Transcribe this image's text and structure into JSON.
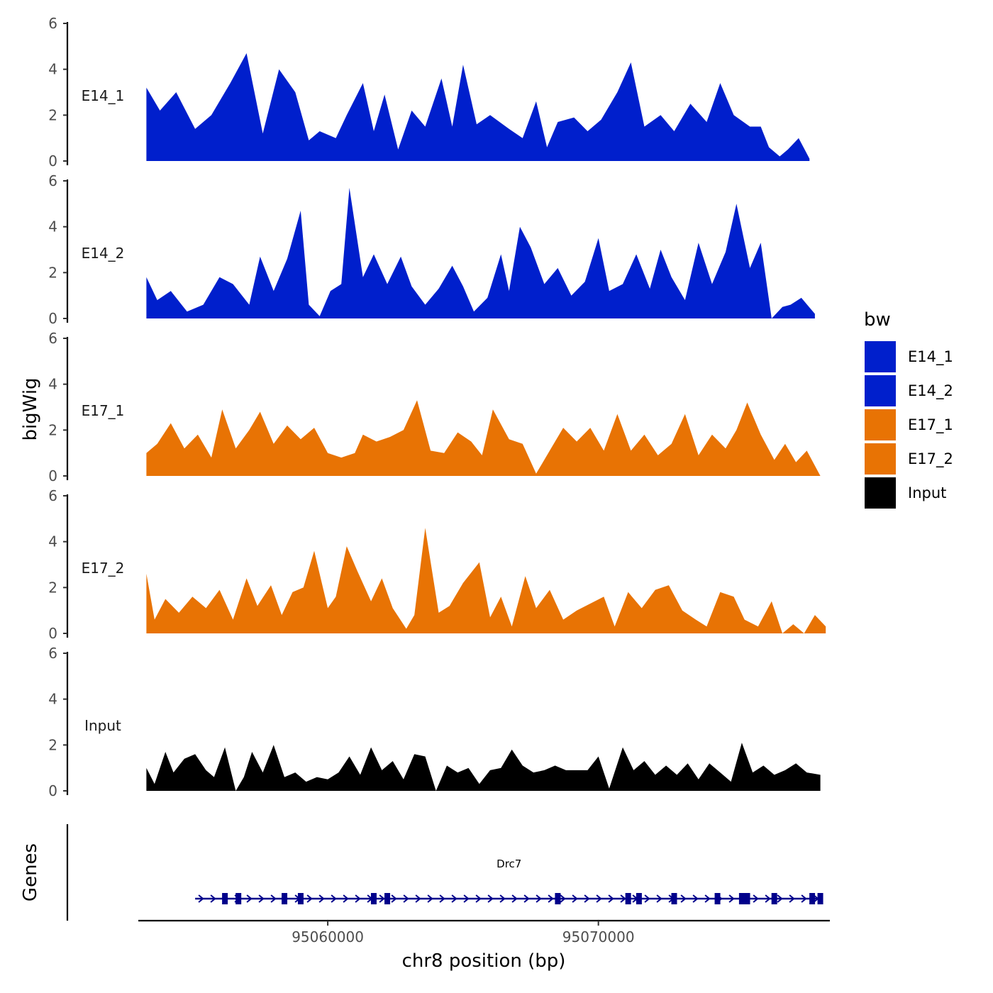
{
  "chart_data": {
    "type": "area",
    "y_axis_title": "bigWig",
    "x_axis_title": "chr8 position (bp)",
    "genes_axis_title": "Genes",
    "xlim": [
      95053000,
      95078500
    ],
    "ylim": [
      0,
      6
    ],
    "y_ticks": [
      "0",
      "2",
      "4",
      "6"
    ],
    "x_ticks": [
      {
        "value": 95060000,
        "label": "95060000"
      },
      {
        "value": 95070000,
        "label": "95070000"
      }
    ],
    "legend": {
      "title": "bw",
      "items": [
        {
          "name": "E14_1",
          "color": "#001fcc"
        },
        {
          "name": "E14_2",
          "color": "#001fcc"
        },
        {
          "name": "E17_1",
          "color": "#e87304"
        },
        {
          "name": "E17_2",
          "color": "#e87304"
        },
        {
          "name": "Input",
          "color": "#000000"
        }
      ]
    },
    "tracks": [
      {
        "name": "E14_1",
        "color": "#001fcc",
        "x": [
          95053300,
          95053800,
          95054400,
          95055100,
          95055700,
          95056400,
          95057000,
          95057600,
          95058200,
          95058800,
          95059300,
          95059700,
          95060300,
          95060700,
          95061300,
          95061700,
          95062100,
          95062600,
          95063100,
          95063600,
          95064200,
          95064600,
          95065000,
          95065500,
          95066000,
          95066700,
          95067200,
          95067700,
          95068100,
          95068500,
          95069100,
          95069600,
          95070100,
          95070700,
          95071200,
          95071700,
          95072300,
          95072800,
          95073400,
          95074000,
          95074500,
          95075000,
          95075600,
          95076000,
          95076300,
          95076700,
          95077000,
          95077400,
          95077800
        ],
        "y": [
          3.2,
          2.2,
          3.0,
          1.4,
          2.0,
          3.4,
          4.7,
          1.2,
          4.0,
          3.0,
          0.9,
          1.3,
          1.0,
          2.0,
          3.4,
          1.3,
          2.9,
          0.5,
          2.2,
          1.5,
          3.6,
          1.5,
          4.2,
          1.6,
          2.0,
          1.4,
          1.0,
          2.6,
          0.6,
          1.7,
          1.9,
          1.3,
          1.8,
          3.0,
          4.3,
          1.5,
          2.0,
          1.3,
          2.5,
          1.7,
          3.4,
          2.0,
          1.5,
          1.5,
          0.6,
          0.2,
          0.5,
          1.0,
          0.1
        ]
      },
      {
        "name": "E14_2",
        "color": "#001fcc",
        "x": [
          95053300,
          95053700,
          95054200,
          95054800,
          95055400,
          95056000,
          95056500,
          95057100,
          95057500,
          95058000,
          95058500,
          95059000,
          95059300,
          95059700,
          95060100,
          95060500,
          95060800,
          95061300,
          95061700,
          95062200,
          95062700,
          95063100,
          95063600,
          95064100,
          95064600,
          95065000,
          95065400,
          95065900,
          95066400,
          95066700,
          95067100,
          95067500,
          95068000,
          95068500,
          95069000,
          95069500,
          95070000,
          95070400,
          95070900,
          95071400,
          95071900,
          95072300,
          95072700,
          95073200,
          95073700,
          95074200,
          95074700,
          95075100,
          95075600,
          95076000,
          95076400,
          95076800,
          95077100,
          95077500,
          95078000
        ],
        "y": [
          1.8,
          0.8,
          1.2,
          0.3,
          0.6,
          1.8,
          1.5,
          0.6,
          2.7,
          1.2,
          2.6,
          4.7,
          0.6,
          0.1,
          1.2,
          1.5,
          5.7,
          1.8,
          2.8,
          1.5,
          2.7,
          1.4,
          0.6,
          1.3,
          2.3,
          1.4,
          0.3,
          0.9,
          2.8,
          1.2,
          4.0,
          3.1,
          1.5,
          2.2,
          1.0,
          1.6,
          3.5,
          1.2,
          1.5,
          2.8,
          1.3,
          3.0,
          1.8,
          0.8,
          3.3,
          1.5,
          2.9,
          5.0,
          2.2,
          3.3,
          0.0,
          0.5,
          0.6,
          0.9,
          0.2
        ]
      },
      {
        "name": "E17_1",
        "color": "#e87304",
        "x": [
          95053300,
          95053700,
          95054200,
          95054700,
          95055200,
          95055700,
          95056100,
          95056600,
          95057100,
          95057500,
          95058000,
          95058500,
          95059000,
          95059500,
          95060000,
          95060500,
          95061000,
          95061300,
          95061800,
          95062300,
          95062800,
          95063300,
          95063800,
          95064300,
          95064800,
          95065300,
          95065700,
          95066100,
          95066700,
          95067200,
          95067700,
          95068200,
          95068700,
          95069200,
          95069700,
          95070200,
          95070700,
          95071200,
          95071700,
          95072200,
          95072700,
          95073200,
          95073700,
          95074200,
          95074700,
          95075100,
          95075500,
          95076000,
          95076500,
          95076900,
          95077300,
          95077700,
          95078200
        ],
        "y": [
          1.0,
          1.4,
          2.3,
          1.2,
          1.8,
          0.8,
          2.9,
          1.2,
          2.0,
          2.8,
          1.4,
          2.2,
          1.6,
          2.1,
          1.0,
          0.8,
          1.0,
          1.8,
          1.5,
          1.7,
          2.0,
          3.3,
          1.1,
          1.0,
          1.9,
          1.5,
          0.9,
          2.9,
          1.6,
          1.4,
          0.1,
          1.1,
          2.1,
          1.5,
          2.1,
          1.1,
          2.7,
          1.1,
          1.8,
          0.9,
          1.4,
          2.7,
          0.9,
          1.8,
          1.2,
          2.0,
          3.2,
          1.8,
          0.7,
          1.4,
          0.6,
          1.1,
          0.0
        ]
      },
      {
        "name": "E17_2",
        "color": "#e87304",
        "x": [
          95053300,
          95053600,
          95054000,
          95054500,
          95055000,
          95055500,
          95056000,
          95056500,
          95057000,
          95057400,
          95057900,
          95058300,
          95058700,
          95059100,
          95059500,
          95060000,
          95060300,
          95060700,
          95061100,
          95061600,
          95062000,
          95062400,
          95062900,
          95063200,
          95063600,
          95064100,
          95064500,
          95065000,
          95065600,
          95066000,
          95066400,
          95066800,
          95067300,
          95067700,
          95068200,
          95068700,
          95069200,
          95069700,
          95070200,
          95070600,
          95071100,
          95071600,
          95072100,
          95072600,
          95073100,
          95073600,
          95074000,
          95074500,
          95075000,
          95075400,
          95075900,
          95076400,
          95076800,
          95077200,
          95077600,
          95078000,
          95078400
        ],
        "y": [
          2.6,
          0.6,
          1.5,
          0.9,
          1.6,
          1.1,
          1.9,
          0.6,
          2.4,
          1.2,
          2.1,
          0.8,
          1.8,
          2.0,
          3.6,
          1.1,
          1.6,
          3.8,
          2.7,
          1.4,
          2.4,
          1.1,
          0.2,
          0.8,
          4.6,
          0.9,
          1.2,
          2.2,
          3.1,
          0.7,
          1.6,
          0.3,
          2.5,
          1.1,
          1.9,
          0.6,
          1.0,
          1.3,
          1.6,
          0.3,
          1.8,
          1.1,
          1.9,
          2.1,
          1.0,
          0.6,
          0.3,
          1.8,
          1.6,
          0.6,
          0.3,
          1.4,
          0.0,
          0.4,
          0.0,
          0.8,
          0.3
        ]
      },
      {
        "name": "Input",
        "color": "#000000",
        "x": [
          95053300,
          95053600,
          95054000,
          95054300,
          95054700,
          95055100,
          95055500,
          95055800,
          95056200,
          95056600,
          95056900,
          95057200,
          95057600,
          95058000,
          95058400,
          95058800,
          95059200,
          95059600,
          95060000,
          95060400,
          95060800,
          95061200,
          95061600,
          95062000,
          95062400,
          95062800,
          95063200,
          95063600,
          95064000,
          95064400,
          95064800,
          95065200,
          95065600,
          95066000,
          95066400,
          95066800,
          95067200,
          95067600,
          95068000,
          95068400,
          95068800,
          95069200,
          95069600,
          95070000,
          95070400,
          95070900,
          95071300,
          95071700,
          95072100,
          95072500,
          95072900,
          95073300,
          95073700,
          95074100,
          95074500,
          95074900,
          95075300,
          95075700,
          95076100,
          95076500,
          95076900,
          95077300,
          95077700,
          95078200
        ],
        "y": [
          1.0,
          0.3,
          1.7,
          0.8,
          1.4,
          1.6,
          0.9,
          0.6,
          1.9,
          0.0,
          0.6,
          1.7,
          0.8,
          2.0,
          0.6,
          0.8,
          0.4,
          0.6,
          0.5,
          0.8,
          1.5,
          0.7,
          1.9,
          0.9,
          1.3,
          0.5,
          1.6,
          1.5,
          0.0,
          1.1,
          0.8,
          1.0,
          0.3,
          0.9,
          1.0,
          1.8,
          1.1,
          0.8,
          0.9,
          1.1,
          0.9,
          0.9,
          0.9,
          1.5,
          0.1,
          1.9,
          0.9,
          1.3,
          0.7,
          1.1,
          0.7,
          1.2,
          0.5,
          1.2,
          0.8,
          0.4,
          2.1,
          0.8,
          1.1,
          0.7,
          0.9,
          1.2,
          0.8,
          0.7
        ]
      }
    ],
    "genes": [
      {
        "name": "Drc7",
        "start": 95055100,
        "end": 95078300,
        "strand": "+",
        "color": "#00008b",
        "exons": [
          95056200,
          95056700,
          95058400,
          95059000,
          95061700,
          95062200,
          95068500,
          95071100,
          95071500,
          95072800,
          95074400,
          95075300,
          95075500,
          95076500,
          95077900,
          95078200
        ]
      }
    ]
  }
}
